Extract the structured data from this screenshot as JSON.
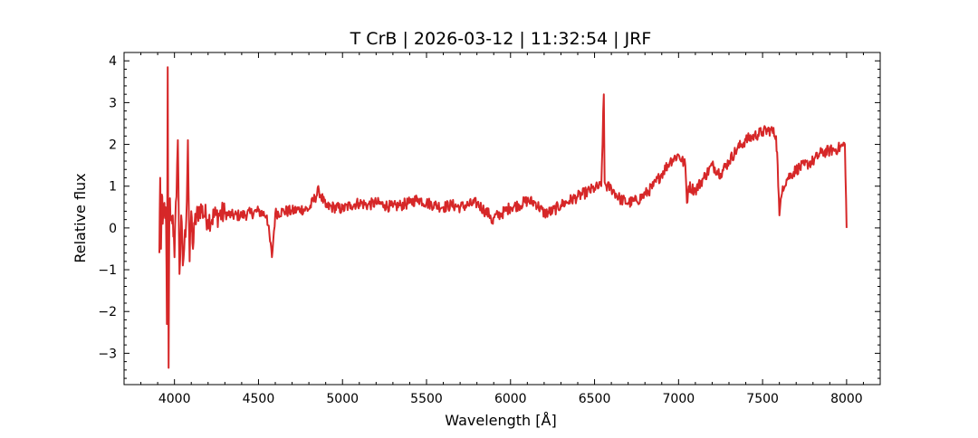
{
  "chart_data": {
    "type": "line",
    "title": "T CrB | 2026-03-12 | 11:32:54 | JRF",
    "xlabel": "Wavelength [Å]",
    "ylabel": "Relative flux",
    "xlim": [
      3700,
      8200
    ],
    "ylim": [
      -3.75,
      4.2
    ],
    "x_ticks": [
      4000,
      4500,
      5000,
      5500,
      6000,
      6500,
      7000,
      7500,
      8000
    ],
    "x_tick_labels": [
      "4000",
      "4500",
      "5000",
      "5500",
      "6000",
      "6500",
      "7000",
      "7500",
      "8000"
    ],
    "y_ticks": [
      -3,
      -2,
      -1,
      0,
      1,
      2,
      3,
      4
    ],
    "y_tick_labels": [
      "−3",
      "−2",
      "−1",
      "0",
      "1",
      "2",
      "3",
      "4"
    ],
    "grid": false,
    "line_color": "#d62728",
    "series": [
      {
        "x": [
          3910,
          3915,
          3920,
          3925,
          3930,
          3940,
          3950,
          3955,
          3960,
          3965,
          3970,
          3980,
          3990,
          4000,
          4020,
          4030,
          4040,
          4050,
          4070,
          4080,
          4090,
          4100,
          4110,
          4120,
          4150,
          4200,
          4250,
          4300,
          4340,
          4400,
          4450,
          4500,
          4550,
          4580,
          4600,
          4650,
          4700,
          4750,
          4800,
          4860,
          4900,
          4950,
          5000,
          5050,
          5100,
          5150,
          5200,
          5250,
          5300,
          5350,
          5400,
          5450,
          5500,
          5550,
          5600,
          5650,
          5700,
          5750,
          5800,
          5850,
          5880,
          5895,
          5900,
          5950,
          6000,
          6050,
          6100,
          6150,
          6200,
          6250,
          6300,
          6350,
          6400,
          6450,
          6500,
          6540,
          6555,
          6560,
          6570,
          6600,
          6650,
          6700,
          6750,
          6800,
          6850,
          6900,
          6950,
          7000,
          7040,
          7050,
          7060,
          7100,
          7150,
          7200,
          7250,
          7300,
          7350,
          7400,
          7450,
          7500,
          7550,
          7580,
          7590,
          7600,
          7620,
          7650,
          7700,
          7750,
          7800,
          7850,
          7900,
          7950,
          7990,
          8000
        ],
        "y": [
          -0.6,
          1.2,
          -0.5,
          0.8,
          0.1,
          0.6,
          0.1,
          -2.3,
          3.85,
          -3.35,
          0.7,
          0.2,
          0.3,
          -0.7,
          2.1,
          -1.1,
          0.3,
          -0.9,
          0.2,
          2.1,
          -0.8,
          0.4,
          -0.5,
          0.1,
          0.5,
          0.2,
          0.3,
          0.35,
          0.3,
          0.3,
          0.35,
          0.4,
          0.3,
          -0.7,
          0.35,
          0.4,
          0.4,
          0.45,
          0.45,
          0.9,
          0.5,
          0.5,
          0.45,
          0.55,
          0.6,
          0.55,
          0.6,
          0.55,
          0.5,
          0.55,
          0.6,
          0.7,
          0.6,
          0.55,
          0.5,
          0.55,
          0.5,
          0.55,
          0.6,
          0.4,
          0.3,
          0.1,
          0.25,
          0.35,
          0.5,
          0.55,
          0.65,
          0.6,
          0.35,
          0.4,
          0.55,
          0.65,
          0.75,
          0.85,
          0.95,
          1.0,
          3.2,
          1.1,
          1.0,
          0.95,
          0.7,
          0.6,
          0.65,
          0.8,
          1.0,
          1.3,
          1.6,
          1.75,
          1.5,
          0.6,
          1.0,
          0.9,
          1.2,
          1.5,
          1.3,
          1.6,
          1.9,
          2.1,
          2.2,
          2.3,
          2.35,
          2.2,
          1.5,
          0.3,
          1.0,
          1.2,
          1.4,
          1.5,
          1.6,
          1.8,
          1.85,
          1.9,
          2.0,
          0.0
        ]
      }
    ]
  }
}
